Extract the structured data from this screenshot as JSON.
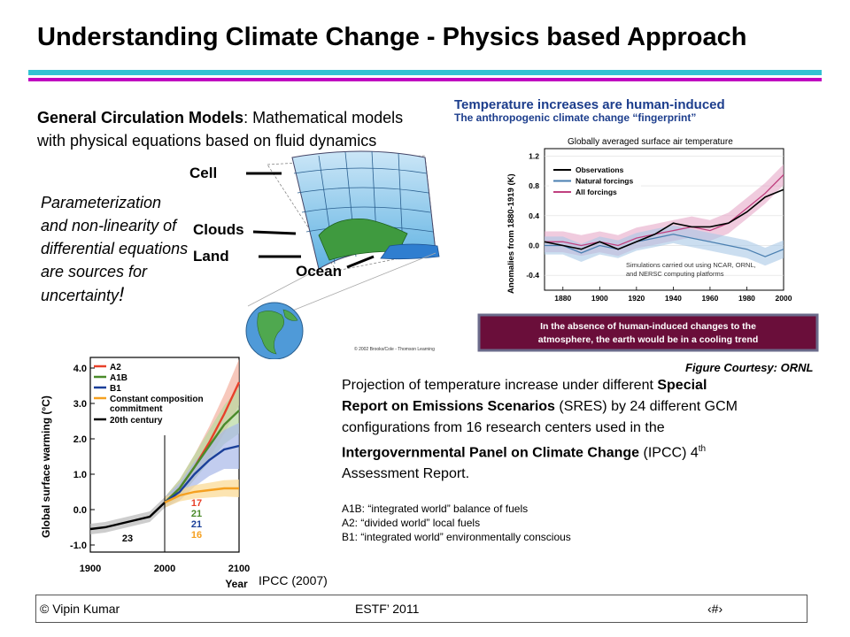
{
  "slide": {
    "title": "Understanding Climate Change - Physics based Approach",
    "gcm": {
      "term": "General Circulation Models",
      "desc": ": Mathematical models with physical equations based on fluid dynamics"
    },
    "param": {
      "text": "Parameterization and non-linearity of differential equations are sources for uncertainty",
      "bang": "!"
    },
    "model_labels": {
      "cell": "Cell",
      "clouds": "Clouds",
      "land": "Land",
      "ocean": "Ocean",
      "copyright": "© 2002 Brooks/Cole - Thomson Learning"
    },
    "projection": {
      "p1": "Projection of temperature increase under different ",
      "b1": "Special Report on Emissions Scenarios",
      "p2": " (SRES) by 24 different GCM configurations from 16 research centers used in the ",
      "b2": "Intergovernmental Panel on Climate Change",
      "p3": " (IPCC) 4",
      "sup": "th",
      "p4": " Assessment Report."
    },
    "scenarios": [
      "A1B:  “integrated world” balance of fuels",
      "A2:    “divided world” local fuels",
      "B1:    “integrated world” environmentally conscious"
    ],
    "courtesy": "Figure Courtesy: ORNL",
    "ipcc_source": "IPCC (2007)",
    "footer": {
      "author": "© Vipin Kumar",
      "event": "ESTF’ 2011",
      "page": "‹#›"
    }
  },
  "colors": {
    "observations": "#000000",
    "natural": "#4a7fb0",
    "all": "#c0407f",
    "a2": "#e8402a",
    "a1b": "#4a8a2a",
    "b1": "#1a3f99",
    "commit": "#f5a020",
    "twentieth": "#000000",
    "banner_bg": "#6a0e3a",
    "title_blue": "#1c3d8c"
  },
  "chart_data": [
    {
      "type": "line",
      "title": "Temperature increases are human-induced",
      "subtitle": "The anthropogenic climate change “fingerprint”",
      "inner_title": "Globally averaged surface air temperature",
      "ylabel": "Anomalies from 1880-1919 (K)",
      "xlabel": "",
      "x_ticks": [
        1880,
        1900,
        1920,
        1940,
        1960,
        1980,
        2000
      ],
      "y_ticks": [
        "1.2",
        "0.8",
        "0.4",
        "0.0",
        "-0.4"
      ],
      "xlim": [
        1870,
        2000
      ],
      "ylim": [
        -0.6,
        1.3
      ],
      "legend_position": "top-left",
      "note": "Simulations carried out using NCAR, ORNL, and NERSC computing platforms",
      "banner": "In the absence of human-induced changes to the atmosphere, the earth would be in a cooling trend",
      "x": [
        1870,
        1880,
        1890,
        1900,
        1910,
        1920,
        1930,
        1940,
        1950,
        1960,
        1970,
        1980,
        1990,
        2000
      ],
      "series": [
        {
          "name": "Observations",
          "values": [
            0.05,
            0.0,
            -0.05,
            0.05,
            -0.05,
            0.05,
            0.15,
            0.3,
            0.25,
            0.25,
            0.3,
            0.45,
            0.65,
            0.75
          ]
        },
        {
          "name": "Natural forcings",
          "values": [
            0.0,
            0.0,
            -0.1,
            0.0,
            -0.05,
            0.05,
            0.1,
            0.15,
            0.1,
            0.05,
            0.0,
            -0.05,
            -0.15,
            -0.05
          ]
        },
        {
          "name": "All forcings",
          "values": [
            0.05,
            0.05,
            0.0,
            0.05,
            0.0,
            0.1,
            0.15,
            0.2,
            0.25,
            0.2,
            0.3,
            0.5,
            0.7,
            0.95
          ]
        }
      ]
    },
    {
      "type": "line",
      "title": "",
      "ylabel": "Global surface warming (°C)",
      "xlabel": "Year",
      "x_ticks": [
        "1900",
        "2000",
        "2100"
      ],
      "y_ticks": [
        "4.0",
        "3.0",
        "2.0",
        "1.0",
        "0.0",
        "-1.0"
      ],
      "xlim": [
        1900,
        2100
      ],
      "ylim": [
        -1.2,
        4.3
      ],
      "legend_position": "top-left",
      "x": [
        1900,
        1920,
        1940,
        1960,
        1980,
        2000,
        2020,
        2040,
        2060,
        2080,
        2100
      ],
      "series": [
        {
          "name": "A2",
          "values": [
            null,
            null,
            null,
            null,
            null,
            0.2,
            0.6,
            1.2,
            1.9,
            2.7,
            3.6
          ]
        },
        {
          "name": "A1B",
          "values": [
            null,
            null,
            null,
            null,
            null,
            0.2,
            0.6,
            1.2,
            1.8,
            2.4,
            2.8
          ]
        },
        {
          "name": "B1",
          "values": [
            null,
            null,
            null,
            null,
            null,
            0.2,
            0.5,
            1.0,
            1.4,
            1.7,
            1.8
          ]
        },
        {
          "name": "Constant composition commitment",
          "values": [
            null,
            null,
            null,
            null,
            null,
            0.2,
            0.4,
            0.5,
            0.55,
            0.6,
            0.6
          ]
        },
        {
          "name": "20th century",
          "values": [
            -0.55,
            -0.5,
            -0.4,
            -0.3,
            -0.2,
            0.2,
            null,
            null,
            null,
            null,
            null
          ]
        }
      ],
      "model_counts": [
        {
          "series": "A2",
          "count": "17"
        },
        {
          "series": "A1B",
          "count": "21"
        },
        {
          "series": "B1",
          "count": "21"
        },
        {
          "series": "Constant composition commitment",
          "count": "16"
        },
        {
          "series": "20th century",
          "count": "23"
        }
      ]
    }
  ]
}
